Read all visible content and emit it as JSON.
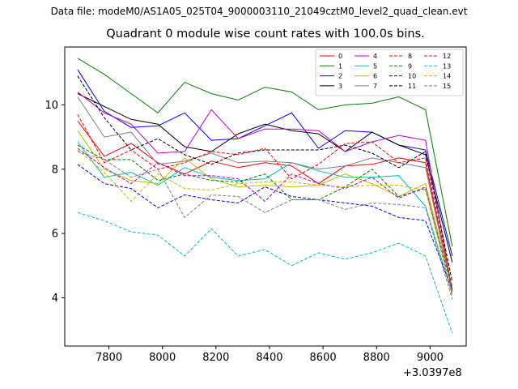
{
  "header": {
    "suptitle": "Data file: modeM0/AS1A05_025T04_9000003110_21049cztM0_level2_quad_clean.evt"
  },
  "chart_data": {
    "type": "line",
    "title": "Quadrant 0 module wise count rates with 100.0s bins.",
    "xlabel": "",
    "ylabel": "",
    "x_offset_label": "+3.0397e8",
    "xlim": [
      7635,
      9135
    ],
    "ylim": [
      2.5,
      11.8
    ],
    "xticks": [
      7800,
      8000,
      8200,
      8400,
      8600,
      8800,
      9000
    ],
    "yticks": [
      4,
      6,
      8,
      10
    ],
    "grid": false,
    "legend": {
      "location": "top-right",
      "ncol": 4
    },
    "x": [
      7683,
      7783,
      7883,
      7983,
      8083,
      8183,
      8283,
      8383,
      8483,
      8583,
      8683,
      8783,
      8883,
      8983,
      9083
    ],
    "series": [
      {
        "name": "0",
        "color": "#ff0000",
        "dash": "solid",
        "values": [
          9.5,
          8.4,
          8.8,
          8.2,
          7.85,
          8.25,
          8.05,
          8.2,
          8.1,
          7.55,
          8.1,
          8.15,
          8.35,
          8.2,
          4.2
        ]
      },
      {
        "name": "1",
        "color": "#008000",
        "dash": "solid",
        "values": [
          11.45,
          10.95,
          10.35,
          9.75,
          10.7,
          10.35,
          10.15,
          10.55,
          10.4,
          9.85,
          10.0,
          10.05,
          10.25,
          9.85,
          5.6
        ]
      },
      {
        "name": "2",
        "color": "#0000ff",
        "dash": "solid",
        "values": [
          11.1,
          9.8,
          9.3,
          9.35,
          9.75,
          8.9,
          8.95,
          9.35,
          9.75,
          8.65,
          9.2,
          9.15,
          8.75,
          8.6,
          5.3
        ]
      },
      {
        "name": "3",
        "color": "#000000",
        "dash": "solid",
        "values": [
          10.35,
          9.95,
          9.55,
          9.4,
          8.7,
          8.55,
          9.1,
          9.4,
          9.2,
          9.1,
          8.55,
          9.15,
          8.75,
          8.45,
          5.1
        ]
      },
      {
        "name": "4",
        "color": "#c000c0",
        "dash": "solid",
        "values": [
          10.4,
          9.75,
          9.4,
          8.5,
          8.55,
          9.85,
          8.95,
          9.25,
          9.25,
          9.2,
          8.55,
          8.85,
          9.05,
          8.9,
          4.2
        ]
      },
      {
        "name": "5",
        "color": "#00bfbf",
        "dash": "solid",
        "values": [
          8.85,
          7.75,
          7.9,
          7.5,
          8.05,
          7.75,
          7.65,
          7.7,
          8.2,
          7.95,
          7.75,
          7.75,
          7.8,
          6.85,
          4.1
        ]
      },
      {
        "name": "6",
        "color": "#bfbf00",
        "dash": "solid",
        "values": [
          9.2,
          8.0,
          7.65,
          7.55,
          8.35,
          7.7,
          7.45,
          7.5,
          7.45,
          7.5,
          7.85,
          7.55,
          7.15,
          7.55,
          4.3
        ]
      },
      {
        "name": "7",
        "color": "#808080",
        "dash": "solid",
        "values": [
          10.25,
          9.0,
          9.15,
          8.15,
          8.25,
          8.5,
          8.2,
          8.25,
          8.2,
          8.0,
          8.1,
          8.35,
          8.2,
          8.05,
          4.2
        ]
      },
      {
        "name": "8",
        "color": "#ff0000",
        "dash": "dashed",
        "values": [
          9.7,
          8.2,
          8.6,
          8.0,
          8.2,
          8.55,
          8.45,
          8.65,
          7.7,
          8.15,
          8.8,
          8.85,
          8.2,
          8.35,
          4.3
        ]
      },
      {
        "name": "9",
        "color": "#008000",
        "dash": "dashed",
        "values": [
          8.75,
          8.3,
          8.3,
          7.65,
          7.85,
          7.65,
          7.6,
          7.85,
          7.05,
          7.05,
          7.45,
          8.0,
          7.15,
          7.4,
          4.25
        ]
      },
      {
        "name": "10",
        "color": "#0000ff",
        "dash": "dashed",
        "values": [
          8.15,
          7.55,
          7.4,
          6.8,
          7.2,
          7.05,
          6.95,
          7.45,
          7.15,
          7.05,
          6.95,
          6.85,
          6.5,
          6.4,
          4.25
        ]
      },
      {
        "name": "11",
        "color": "#000000",
        "dash": "dashed",
        "values": [
          10.9,
          9.6,
          8.6,
          8.95,
          8.45,
          8.15,
          8.5,
          8.6,
          8.6,
          8.6,
          8.75,
          8.5,
          8.05,
          8.55,
          4.5
        ]
      },
      {
        "name": "12",
        "color": "#c000c0",
        "dash": "dashed",
        "values": [
          8.65,
          8.05,
          7.55,
          8.2,
          7.8,
          7.8,
          7.7,
          7.0,
          7.85,
          7.55,
          7.4,
          7.75,
          7.1,
          7.45,
          4.05
        ]
      },
      {
        "name": "13",
        "color": "#00bfbf",
        "dash": "dashed",
        "values": [
          6.65,
          6.4,
          6.05,
          5.95,
          5.3,
          6.15,
          5.3,
          5.5,
          5.0,
          5.4,
          5.2,
          5.4,
          5.7,
          5.3,
          2.9
        ]
      },
      {
        "name": "14",
        "color": "#bfbf00",
        "dash": "dashed",
        "values": [
          8.6,
          7.9,
          7.0,
          7.85,
          7.4,
          7.35,
          7.55,
          7.6,
          7.6,
          7.5,
          7.45,
          7.5,
          7.5,
          7.35,
          4.1
        ]
      },
      {
        "name": "15",
        "color": "#808080",
        "dash": "dashed",
        "values": [
          8.55,
          8.3,
          7.75,
          8.0,
          6.5,
          7.2,
          7.15,
          6.65,
          7.05,
          7.05,
          6.75,
          6.95,
          6.9,
          6.8,
          3.95
        ]
      }
    ]
  }
}
